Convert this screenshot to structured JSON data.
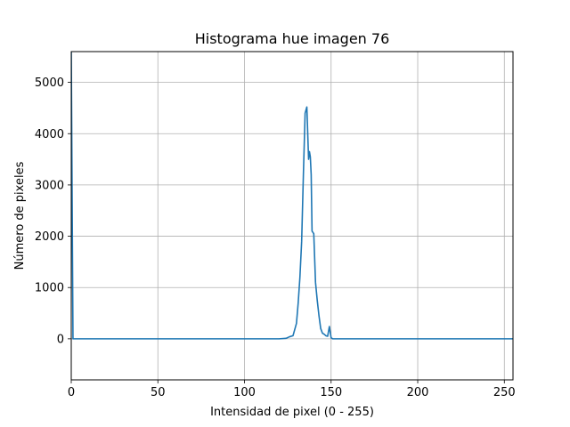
{
  "chart_data": {
    "type": "line",
    "title": "Histograma hue imagen 76",
    "xlabel": "Intensidad de pixel (0 - 255)",
    "ylabel": "Número de pixeles",
    "xlim": [
      0,
      255
    ],
    "ylim": [
      -800,
      5600
    ],
    "xticks": [
      0,
      50,
      100,
      150,
      200,
      250
    ],
    "xtick_labels": [
      "0",
      "50",
      "100",
      "150",
      "200",
      "250"
    ],
    "yticks": [
      0,
      1000,
      2000,
      3000,
      4000,
      5000
    ],
    "ytick_labels": [
      "0",
      "1000",
      "2000",
      "3000",
      "4000",
      "5000"
    ],
    "grid": true,
    "series": [
      {
        "color": "#1f77b4",
        "x": [
          0,
          1,
          2,
          120,
          124,
          126,
          128,
          130,
          131,
          132,
          133,
          134,
          135,
          136,
          137,
          137.5,
          138,
          138.5,
          139,
          140,
          141,
          142,
          143,
          144,
          145,
          146,
          147,
          148,
          149,
          150,
          151,
          152,
          200,
          255
        ],
        "y": [
          5600,
          0,
          0,
          0,
          10,
          40,
          60,
          300,
          700,
          1200,
          1900,
          3200,
          4400,
          4520,
          3500,
          3650,
          3550,
          3200,
          2100,
          2050,
          1100,
          750,
          450,
          200,
          110,
          90,
          60,
          50,
          240,
          20,
          0,
          0,
          0,
          0
        ]
      }
    ]
  }
}
